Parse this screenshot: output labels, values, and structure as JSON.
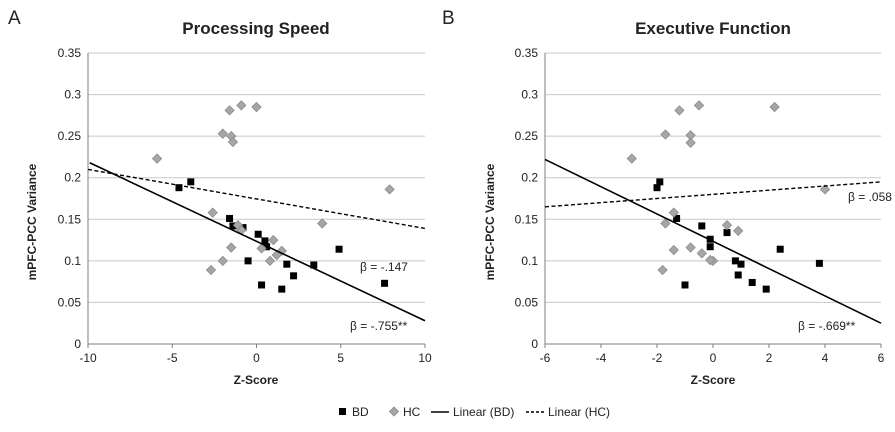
{
  "legend": {
    "bd": "BD",
    "hc": "HC",
    "lin_bd": "Linear (BD)",
    "lin_hc": "Linear (HC)"
  },
  "colors": {
    "bd": "#000000",
    "hc": "#a6a6a6",
    "hc_edge": "#8c8c8c",
    "grid": "#c8c8c8",
    "axis": "#7f7f7f"
  },
  "chart_data": [
    {
      "type": "scatter",
      "panel_label": "A",
      "title": "Processing Speed",
      "xlabel": "Z-Score",
      "ylabel": "mPFC-PCC Variance",
      "xlim": [
        -10,
        10
      ],
      "ylim": [
        0,
        0.35
      ],
      "xticks": [
        -10,
        -5,
        0,
        5,
        10
      ],
      "yticks": [
        0,
        0.05,
        0.1,
        0.15,
        0.2,
        0.25,
        0.3,
        0.35
      ],
      "ytick_labels": [
        "0",
        "0.05",
        "0.1",
        "0.15",
        "0.2",
        "0.25",
        "0.3",
        "0.35"
      ],
      "grid": "horizontal",
      "series": [
        {
          "name": "BD",
          "marker": "square",
          "points": [
            [
              -4.6,
              0.188
            ],
            [
              -3.9,
              0.195
            ],
            [
              -1.6,
              0.151
            ],
            [
              -1.4,
              0.142
            ],
            [
              -0.8,
              0.14
            ],
            [
              -0.5,
              0.1
            ],
            [
              0.1,
              0.132
            ],
            [
              0.5,
              0.124
            ],
            [
              0.6,
              0.117
            ],
            [
              0.3,
              0.071
            ],
            [
              1.5,
              0.066
            ],
            [
              1.8,
              0.096
            ],
            [
              2.2,
              0.082
            ],
            [
              3.4,
              0.095
            ],
            [
              4.9,
              0.114
            ],
            [
              7.6,
              0.073
            ]
          ]
        },
        {
          "name": "HC",
          "marker": "diamond",
          "points": [
            [
              -5.9,
              0.223
            ],
            [
              -2.6,
              0.158
            ],
            [
              -2.7,
              0.089
            ],
            [
              -2.0,
              0.1
            ],
            [
              -2.0,
              0.253
            ],
            [
              -1.6,
              0.281
            ],
            [
              -1.5,
              0.25
            ],
            [
              -1.4,
              0.243
            ],
            [
              -0.9,
              0.287
            ],
            [
              -1.5,
              0.116
            ],
            [
              -1.1,
              0.143
            ],
            [
              -0.9,
              0.137
            ],
            [
              0.0,
              0.285
            ],
            [
              0.3,
              0.115
            ],
            [
              0.8,
              0.1
            ],
            [
              1.0,
              0.125
            ],
            [
              1.2,
              0.107
            ],
            [
              1.5,
              0.112
            ],
            [
              3.9,
              0.145
            ],
            [
              7.9,
              0.186
            ]
          ]
        }
      ],
      "trendlines": [
        {
          "name": "Linear (BD)",
          "style": "solid",
          "from": [
            -9.9,
            0.218
          ],
          "to": [
            10,
            0.028
          ]
        },
        {
          "name": "Linear (HC)",
          "style": "dashed",
          "from": [
            -10,
            0.21
          ],
          "to": [
            10,
            0.139
          ]
        }
      ],
      "annotations": [
        "β = -.147",
        "β = -.755**"
      ]
    },
    {
      "type": "scatter",
      "panel_label": "B",
      "title": "Executive Function",
      "xlabel": "Z-Score",
      "ylabel": "mPFC-PCC Variance",
      "xlim": [
        -6,
        6
      ],
      "ylim": [
        0,
        0.35
      ],
      "xticks": [
        -6,
        -4,
        -2,
        0,
        2,
        4,
        6
      ],
      "yticks": [
        0,
        0.05,
        0.1,
        0.15,
        0.2,
        0.25,
        0.3,
        0.35
      ],
      "ytick_labels": [
        "0",
        "0.05",
        "0.1",
        "0.15",
        "0.2",
        "0.25",
        "0.3",
        "0.35"
      ],
      "grid": "horizontal",
      "series": [
        {
          "name": "BD",
          "marker": "square",
          "points": [
            [
              -2.0,
              0.188
            ],
            [
              -1.9,
              0.195
            ],
            [
              -1.3,
              0.151
            ],
            [
              -1.0,
              0.071
            ],
            [
              -0.4,
              0.142
            ],
            [
              -0.1,
              0.126
            ],
            [
              -0.1,
              0.117
            ],
            [
              0.5,
              0.134
            ],
            [
              0.8,
              0.1
            ],
            [
              0.9,
              0.083
            ],
            [
              1.0,
              0.096
            ],
            [
              1.4,
              0.074
            ],
            [
              1.9,
              0.066
            ],
            [
              2.4,
              0.114
            ],
            [
              3.8,
              0.097
            ]
          ]
        },
        {
          "name": "HC",
          "marker": "diamond",
          "points": [
            [
              -2.9,
              0.223
            ],
            [
              -1.7,
              0.252
            ],
            [
              -1.2,
              0.281
            ],
            [
              -0.5,
              0.287
            ],
            [
              -0.8,
              0.251
            ],
            [
              -0.8,
              0.242
            ],
            [
              -1.4,
              0.158
            ],
            [
              -1.7,
              0.145
            ],
            [
              -1.8,
              0.089
            ],
            [
              -1.4,
              0.113
            ],
            [
              -0.8,
              0.116
            ],
            [
              -0.4,
              0.109
            ],
            [
              0.0,
              0.1
            ],
            [
              -0.1,
              0.101
            ],
            [
              0.5,
              0.143
            ],
            [
              0.9,
              0.136
            ],
            [
              2.2,
              0.285
            ],
            [
              4.0,
              0.186
            ]
          ]
        }
      ],
      "trendlines": [
        {
          "name": "Linear (BD)",
          "style": "solid",
          "from": [
            -6,
            0.222
          ],
          "to": [
            6,
            0.025
          ]
        },
        {
          "name": "Linear (HC)",
          "style": "dashed",
          "from": [
            -6,
            0.165
          ],
          "to": [
            6,
            0.195
          ]
        }
      ],
      "annotations": [
        "β = .058",
        "β = -.669**"
      ]
    }
  ]
}
